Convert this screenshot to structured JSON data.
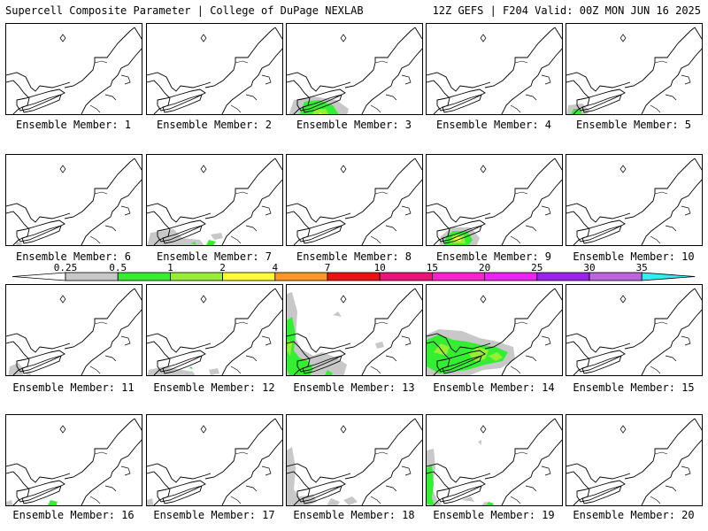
{
  "header": {
    "left": "Supercell Composite Parameter | College of DuPage NEXLAB",
    "right": "12Z GEFS | F204 Valid: 00Z MON JUN 16 2025"
  },
  "member_label_prefix": "Ensemble Member:",
  "members": [
    {
      "id": "1"
    },
    {
      "id": "2"
    },
    {
      "id": "3"
    },
    {
      "id": "4"
    },
    {
      "id": "5"
    },
    {
      "id": "6"
    },
    {
      "id": "7"
    },
    {
      "id": "8"
    },
    {
      "id": "9"
    },
    {
      "id": "10"
    },
    {
      "id": "11"
    },
    {
      "id": "12"
    },
    {
      "id": "13"
    },
    {
      "id": "14"
    },
    {
      "id": "15"
    },
    {
      "id": "16"
    },
    {
      "id": "17"
    },
    {
      "id": "18"
    },
    {
      "id": "19"
    },
    {
      "id": "20"
    }
  ],
  "colorbar": {
    "ticks": [
      "0.25",
      "0.5",
      "1",
      "2",
      "4",
      "7",
      "10",
      "15",
      "20",
      "25",
      "30",
      "35"
    ],
    "colors": {
      "0.25-0.5": "#c8c8c8",
      "0.5-1": "#33ee33",
      "1-2": "#99ee33",
      "2-4": "#ffff33",
      "4-7": "#ff9922",
      "7-10": "#ee1111",
      "10-15": "#ee1177",
      "15-20": "#ff22cc",
      "20-25": "#ee22ee",
      "25-30": "#9922ee",
      "30-35": "#bb66dd",
      "35+": "#33eeee"
    }
  }
}
